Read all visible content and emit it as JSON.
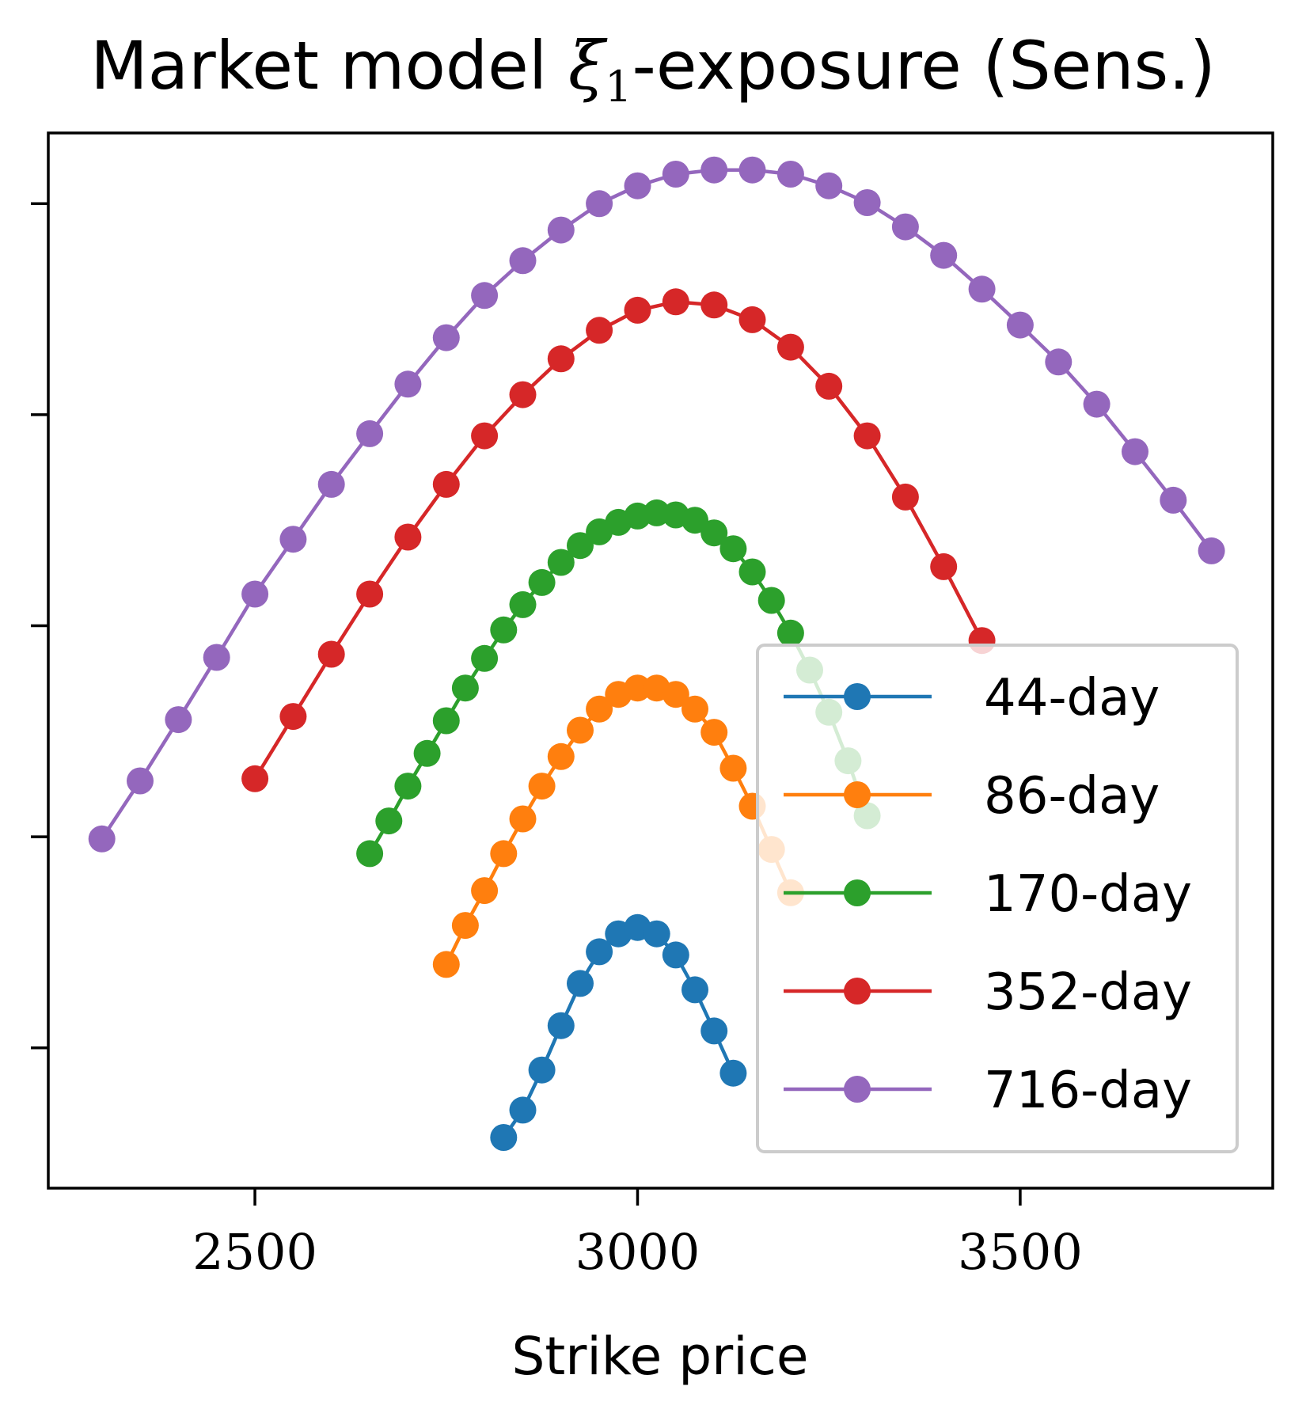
{
  "chart_data": {
    "type": "line",
    "title_prefix": "Market model ",
    "title_symbol": "ξ",
    "title_subscript": "1",
    "title_suffix": "-exposure (Sens.)",
    "xlabel": "Strike price",
    "ylabel": "",
    "xlim": [
      2230,
      3830
    ],
    "ylim": [
      0,
      1
    ],
    "x_ticks": [
      2500,
      3000,
      3500
    ],
    "x_tick_labels": [
      "2500",
      "3000",
      "3500"
    ],
    "y_ticks": [
      0.133,
      0.333,
      0.533,
      0.733,
      0.933
    ],
    "y_tick_labels": [],
    "grid": false,
    "legend_position": "lower-right",
    "colors": {
      "44-day": "#1f77b4",
      "86-day": "#ff7f0e",
      "170-day": "#2ca02c",
      "352-day": "#d62728",
      "716-day": "#9467bd"
    },
    "series": [
      {
        "name": "44-day",
        "x": [
          2825,
          2850,
          2875,
          2900,
          2925,
          2950,
          2975,
          3000,
          3025,
          3050,
          3075,
          3100,
          3125
        ],
        "y": [
          0.048,
          0.074,
          0.112,
          0.154,
          0.194,
          0.224,
          0.241,
          0.247,
          0.241,
          0.221,
          0.188,
          0.149,
          0.109
        ]
      },
      {
        "name": "86-day",
        "x": [
          2750,
          2775,
          2800,
          2825,
          2850,
          2875,
          2900,
          2925,
          2950,
          2975,
          3000,
          3025,
          3050,
          3075,
          3100,
          3125,
          3150,
          3175,
          3200
        ],
        "y": [
          0.212,
          0.249,
          0.282,
          0.317,
          0.35,
          0.381,
          0.409,
          0.434,
          0.454,
          0.468,
          0.474,
          0.474,
          0.468,
          0.454,
          0.432,
          0.398,
          0.362,
          0.321,
          0.28
        ]
      },
      {
        "name": "170-day",
        "x": [
          2650,
          2675,
          2700,
          2725,
          2750,
          2775,
          2800,
          2825,
          2850,
          2875,
          2900,
          2925,
          2950,
          2975,
          3000,
          3025,
          3050,
          3075,
          3100,
          3125,
          3150,
          3175,
          3200,
          3225,
          3250,
          3275,
          3300
        ],
        "y": [
          0.317,
          0.348,
          0.381,
          0.412,
          0.443,
          0.474,
          0.502,
          0.529,
          0.553,
          0.574,
          0.593,
          0.609,
          0.622,
          0.631,
          0.637,
          0.64,
          0.638,
          0.633,
          0.621,
          0.606,
          0.584,
          0.557,
          0.526,
          0.491,
          0.451,
          0.405,
          0.353
        ]
      },
      {
        "name": "352-day",
        "x": [
          2500,
          2550,
          2600,
          2650,
          2700,
          2750,
          2800,
          2850,
          2900,
          2950,
          3000,
          3050,
          3100,
          3150,
          3200,
          3250,
          3300,
          3350,
          3400,
          3450
        ],
        "y": [
          0.388,
          0.447,
          0.506,
          0.563,
          0.617,
          0.667,
          0.713,
          0.752,
          0.786,
          0.813,
          0.832,
          0.84,
          0.837,
          0.823,
          0.797,
          0.76,
          0.713,
          0.655,
          0.589,
          0.519
        ]
      },
      {
        "name": "716-day",
        "x": [
          2300,
          2350,
          2400,
          2450,
          2500,
          2550,
          2600,
          2650,
          2700,
          2750,
          2800,
          2850,
          2900,
          2950,
          3000,
          3050,
          3100,
          3150,
          3200,
          3250,
          3300,
          3350,
          3400,
          3450,
          3500,
          3550,
          3600,
          3650,
          3700,
          3750
        ],
        "y": [
          0.331,
          0.386,
          0.444,
          0.503,
          0.563,
          0.615,
          0.667,
          0.715,
          0.762,
          0.806,
          0.846,
          0.879,
          0.908,
          0.933,
          0.95,
          0.961,
          0.965,
          0.965,
          0.961,
          0.95,
          0.934,
          0.911,
          0.884,
          0.852,
          0.818,
          0.783,
          0.743,
          0.698,
          0.652,
          0.604
        ]
      }
    ]
  }
}
